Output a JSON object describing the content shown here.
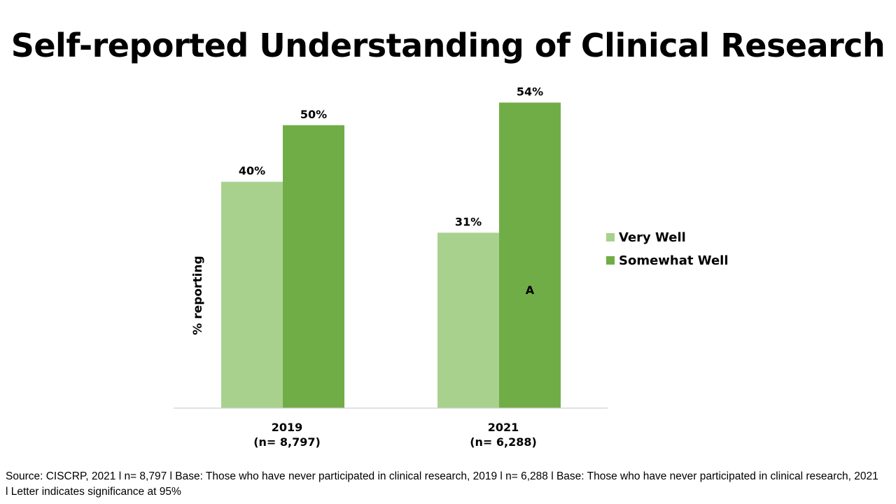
{
  "chart_data": {
    "type": "bar",
    "title": "Self-reported Understanding of Clinical Research",
    "ylabel": "% reporting",
    "xlabel": "",
    "ylim": [
      0,
      60
    ],
    "grid": false,
    "legend_position": "right",
    "categories": [
      {
        "year": "2019",
        "n": "(n= 8,797)"
      },
      {
        "year": "2021",
        "n": "(n= 6,288)"
      }
    ],
    "series": [
      {
        "name": "Very Well",
        "color": "#a9d18e",
        "values": [
          40,
          31
        ],
        "labels": [
          "40%",
          "31%"
        ]
      },
      {
        "name": "Somewhat Well",
        "color": "#70ad47",
        "values": [
          50,
          54
        ],
        "labels": [
          "50%",
          "54%"
        ]
      }
    ],
    "annotations": [
      {
        "series": "Somewhat Well",
        "category": "2021",
        "text": "A"
      }
    ]
  },
  "source_note": "Source: CISCRP, 2021 l n= 8,797 l Base:  Those who have never participated in clinical research, 2019 l n= 6,288 l Base: Those who have never participated in clinical research, 2021 l Letter indicates significance at 95%"
}
